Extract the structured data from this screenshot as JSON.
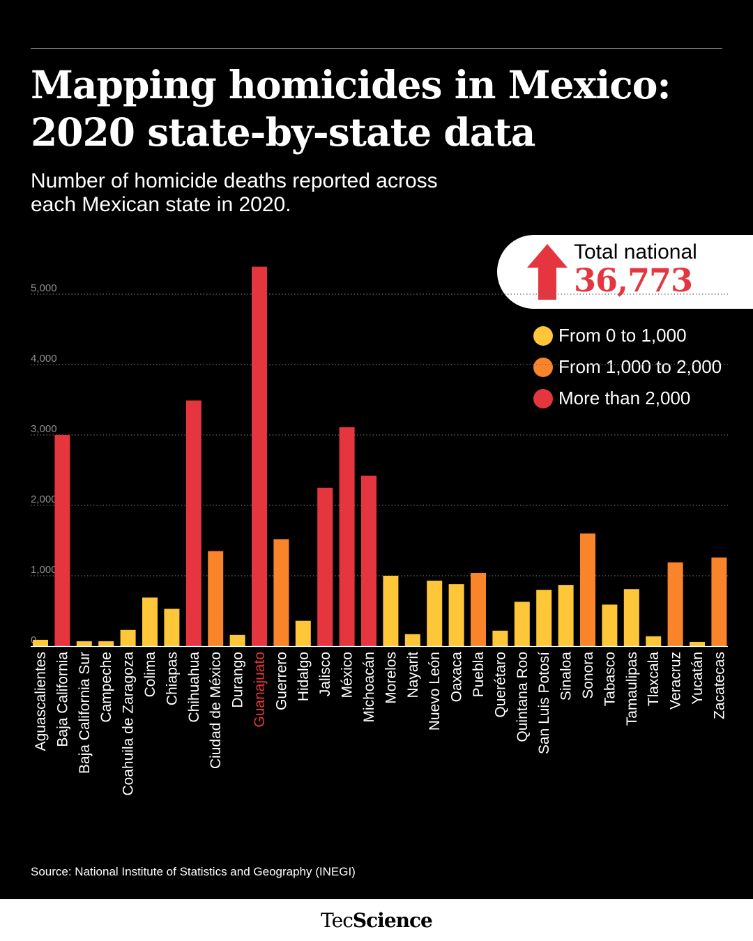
{
  "header": {
    "title_line1": "Mapping homicides in Mexico:",
    "title_line2": "2020 state-by-state data",
    "subtitle_line1": "Number of homicide deaths reported across",
    "subtitle_line2": "each Mexican state in 2020."
  },
  "total": {
    "label": "Total national",
    "value": "36,773",
    "icon": "arrow-up-icon"
  },
  "legend": [
    {
      "label": "From 0 to 1,000",
      "color": "#fdc739"
    },
    {
      "label": "From 1,000 to 2,000",
      "color": "#f9842a"
    },
    {
      "label": "More than 2,000",
      "color": "#e5363f"
    }
  ],
  "colors": {
    "low": "#fdc739",
    "mid": "#f9842a",
    "high": "#e5363f",
    "highlight_label": "#e5363f",
    "background": "#000000"
  },
  "chart_data": {
    "type": "bar",
    "categories": [
      "Aguascalientes",
      "Baja California",
      "Baja California Sur",
      "Campeche",
      "Coahuila de Zaragoza",
      "Colima",
      "Chiapas",
      "Chihuahua",
      "Ciudad de México",
      "Durango",
      "Guanajuato",
      "Guerrero",
      "Hidalgo",
      "Jalisco",
      "México",
      "Michoacán",
      "Morelos",
      "Nayarit",
      "Nuevo León",
      "Oaxaca",
      "Puebla",
      "Querétaro",
      "Quintana Roo",
      "San Luis Potosí",
      "Sinaloa",
      "Sonora",
      "Tabasco",
      "Tamaulipas",
      "Tlaxcala",
      "Veracruz",
      "Yucatán",
      "Zacatecas"
    ],
    "values": [
      90,
      3000,
      70,
      70,
      230,
      690,
      530,
      3490,
      1350,
      160,
      5390,
      1520,
      360,
      2250,
      3110,
      2420,
      1000,
      170,
      930,
      880,
      1040,
      220,
      630,
      800,
      870,
      1600,
      590,
      810,
      140,
      1190,
      60,
      1260
    ],
    "ylim": [
      0,
      5000
    ],
    "yticks": [
      "0",
      "1,000",
      "2,000",
      "3,000",
      "4,000",
      "5,000"
    ],
    "highlight": "Guanajuato",
    "grid": "dotted horizontal",
    "legend_position": "top-right"
  },
  "source": "Source: National Institute of Statistics and Geography (INEGI)",
  "brand": {
    "part1": "Tec",
    "part2": "Science"
  }
}
